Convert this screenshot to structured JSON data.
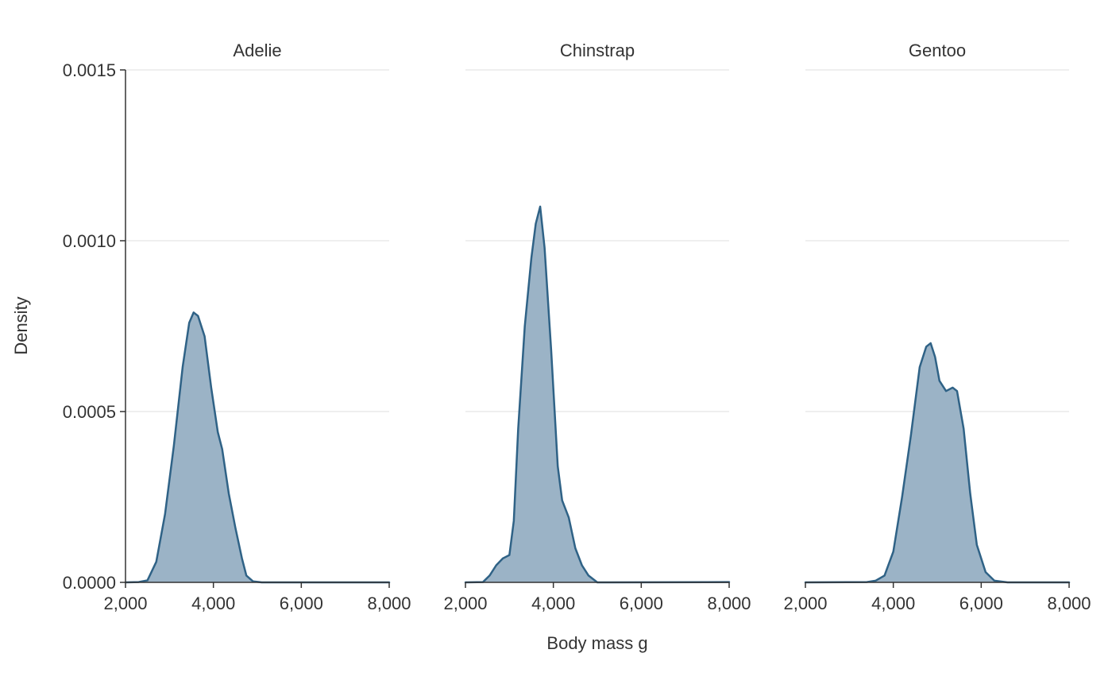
{
  "chart_data": {
    "type": "area",
    "xlabel": "Body mass g",
    "ylabel": "Density",
    "xlim": [
      2000,
      8000
    ],
    "ylim": [
      0,
      0.0015
    ],
    "x_ticks": [
      "2,000",
      "4,000",
      "6,000",
      "8,000"
    ],
    "x_tick_values": [
      2000,
      4000,
      6000,
      8000
    ],
    "y_ticks": [
      "0.0000",
      "0.0005",
      "0.0010",
      "0.0015"
    ],
    "y_tick_values": [
      0,
      0.0005,
      0.001,
      0.0015
    ],
    "grid": "horizontal",
    "colors": {
      "line": "#2f6286",
      "fill": "#9bb3c6",
      "grid": "#e5e5e5",
      "axis": "#333333"
    },
    "panels": [
      {
        "name": "Adelie",
        "x": [
          2000,
          2300,
          2500,
          2700,
          2900,
          3100,
          3300,
          3450,
          3550,
          3650,
          3800,
          3950,
          4100,
          4200,
          4350,
          4500,
          4650,
          4750,
          4900,
          5100,
          5500,
          8000
        ],
        "y": [
          0,
          1e-06,
          6e-06,
          6e-05,
          0.0002,
          0.0004,
          0.00063,
          0.00076,
          0.00079,
          0.00078,
          0.00072,
          0.00057,
          0.00044,
          0.00039,
          0.00026,
          0.00016,
          7e-05,
          2e-05,
          3e-06,
          0,
          0,
          0
        ]
      },
      {
        "name": "Chinstrap",
        "x": [
          2000,
          2400,
          2550,
          2700,
          2850,
          3000,
          3100,
          3200,
          3350,
          3500,
          3600,
          3700,
          3800,
          3950,
          4100,
          4200,
          4350,
          4500,
          4650,
          4800,
          5000,
          5300,
          8000
        ],
        "y": [
          0,
          1e-06,
          2e-05,
          5e-05,
          7e-05,
          8e-05,
          0.00018,
          0.00045,
          0.00075,
          0.00095,
          0.00105,
          0.0011,
          0.00098,
          0.00068,
          0.00034,
          0.00024,
          0.00019,
          0.0001,
          5e-05,
          2e-05,
          0,
          0,
          8e-07
        ]
      },
      {
        "name": "Gentoo",
        "x": [
          2000,
          3400,
          3600,
          3800,
          4000,
          4200,
          4400,
          4600,
          4750,
          4850,
          4950,
          5050,
          5200,
          5350,
          5450,
          5600,
          5750,
          5900,
          6100,
          6300,
          6600,
          8000
        ],
        "y": [
          0,
          1e-06,
          5e-06,
          2e-05,
          9e-05,
          0.00025,
          0.00043,
          0.00063,
          0.00069,
          0.0007,
          0.00066,
          0.00059,
          0.00056,
          0.00057,
          0.00056,
          0.00045,
          0.00026,
          0.00011,
          3e-05,
          5e-06,
          0,
          0
        ]
      }
    ]
  }
}
